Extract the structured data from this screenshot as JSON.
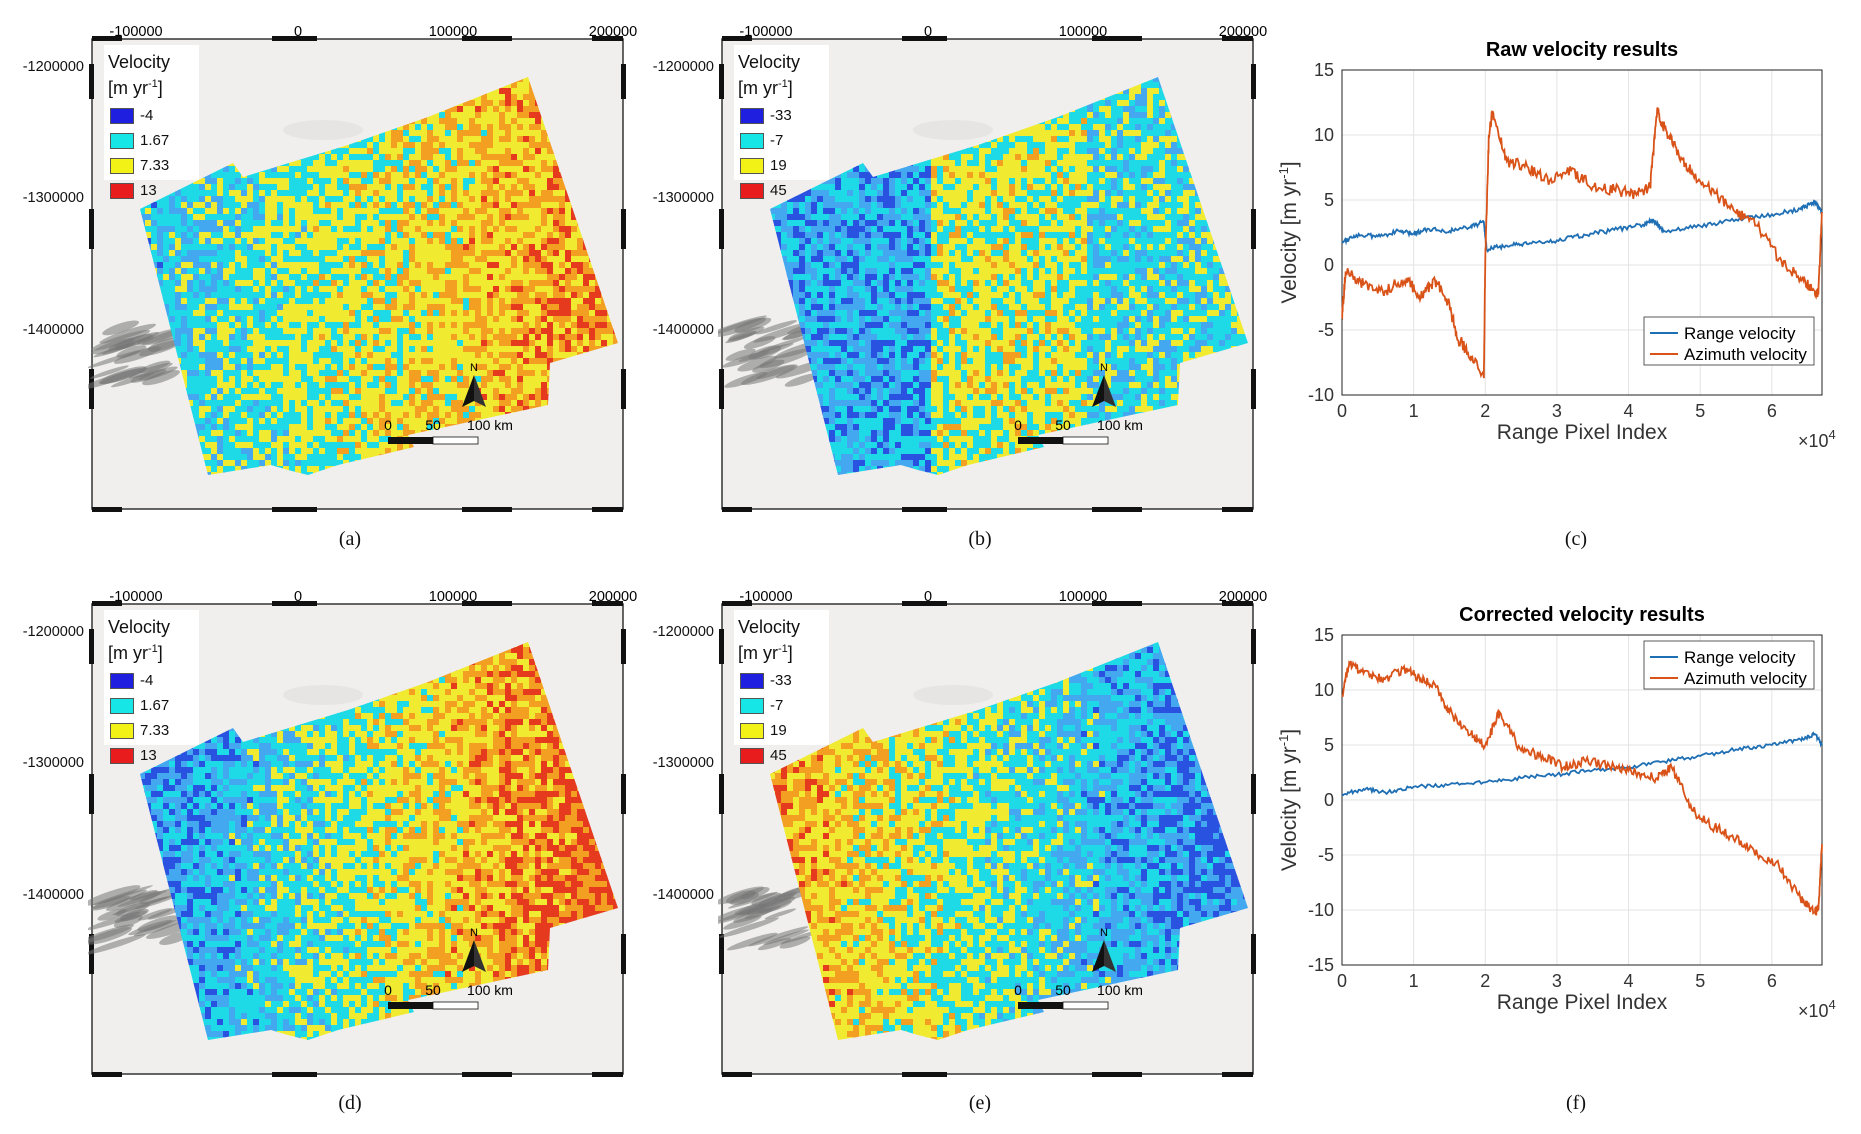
{
  "maps": [
    {
      "id": "a",
      "caption": "(a)",
      "legend": {
        "title_line1": "Velocity",
        "title_line2": "[m yr",
        "title_sup": "-1",
        "title_end": "]",
        "items": [
          {
            "label": "-4",
            "color": "#1f1fe0"
          },
          {
            "label": "1.67",
            "color": "#17e6e6"
          },
          {
            "label": "7.33",
            "color": "#f2f217"
          },
          {
            "label": "13",
            "color": "#e81c1c"
          }
        ]
      },
      "theme": "raw_vel1"
    },
    {
      "id": "b",
      "caption": "(b)",
      "legend": {
        "title_line1": "Velocity",
        "title_line2": "[m yr",
        "title_sup": "-1",
        "title_end": "]",
        "items": [
          {
            "label": "-33",
            "color": "#1f1fe0"
          },
          {
            "label": "-7",
            "color": "#17e6e6"
          },
          {
            "label": "19",
            "color": "#f2f217"
          },
          {
            "label": "45",
            "color": "#e81c1c"
          }
        ]
      },
      "theme": "raw_vel2"
    },
    {
      "id": "d",
      "caption": "(d)",
      "legend": {
        "title_line1": "Velocity",
        "title_line2": "[m yr",
        "title_sup": "-1",
        "title_end": "]",
        "items": [
          {
            "label": "-4",
            "color": "#1f1fe0"
          },
          {
            "label": "1.67",
            "color": "#17e6e6"
          },
          {
            "label": "7.33",
            "color": "#f2f217"
          },
          {
            "label": "13",
            "color": "#e81c1c"
          }
        ]
      },
      "theme": "cor_vel1"
    },
    {
      "id": "e",
      "caption": "(e)",
      "legend": {
        "title_line1": "Velocity",
        "title_line2": "[m yr",
        "title_sup": "-1",
        "title_end": "]",
        "items": [
          {
            "label": "-33",
            "color": "#1f1fe0"
          },
          {
            "label": "-7",
            "color": "#17e6e6"
          },
          {
            "label": "19",
            "color": "#f2f217"
          },
          {
            "label": "45",
            "color": "#e81c1c"
          }
        ]
      },
      "theme": "cor_vel2"
    }
  ],
  "map_axes": {
    "top_ticks": [
      "-100000",
      "0",
      "100000",
      "200000"
    ],
    "left_ticks": [
      "-1200000",
      "-1300000",
      "-1400000"
    ],
    "north_label": "N",
    "scale_labels": [
      "0",
      "50",
      "100 km"
    ]
  },
  "chart_data": [
    {
      "type": "line",
      "panel": "c",
      "caption": "(c)",
      "title": "Raw velocity results",
      "xlabel": "Range Pixel Index",
      "ylabel": "Velocity [m yr",
      "ylabel_sup": "-1",
      "ylabel_end": "]",
      "x_multiplier": "×10",
      "x_multiplier_exp": "4",
      "xlim": [
        0,
        6.7
      ],
      "ylim": [
        -10,
        15
      ],
      "xticks": [
        "0",
        "1",
        "2",
        "3",
        "4",
        "5",
        "6"
      ],
      "yticks": [
        "-10",
        "-5",
        "0",
        "5",
        "10",
        "15"
      ],
      "legend_position": "bottom-right",
      "series": [
        {
          "name": "Range velocity",
          "color": "#1f6fb4",
          "x": [
            0,
            0.2,
            0.5,
            0.8,
            1.0,
            1.2,
            1.5,
            1.8,
            1.98,
            2.02,
            2.3,
            2.6,
            3.0,
            3.4,
            3.8,
            4.2,
            4.35,
            4.5,
            5.0,
            5.5,
            6.0,
            6.4,
            6.6,
            6.7
          ],
          "y": [
            1.8,
            2.3,
            2.2,
            2.6,
            2.4,
            2.8,
            2.6,
            3.0,
            3.3,
            1.2,
            1.5,
            1.6,
            1.9,
            2.3,
            2.7,
            3.1,
            3.4,
            2.6,
            3.0,
            3.5,
            3.9,
            4.3,
            4.9,
            4.0
          ]
        },
        {
          "name": "Azimuth velocity",
          "color": "#d95319",
          "x": [
            0,
            0.05,
            0.3,
            0.6,
            0.9,
            1.1,
            1.3,
            1.5,
            1.6,
            1.8,
            1.98,
            2.0,
            2.05,
            2.1,
            2.3,
            2.6,
            2.9,
            3.2,
            3.5,
            3.8,
            4.1,
            4.3,
            4.4,
            4.5,
            4.7,
            4.9,
            5.2,
            5.5,
            5.8,
            6.1,
            6.4,
            6.6,
            6.65,
            6.7
          ],
          "y": [
            -4.0,
            -0.5,
            -1.5,
            -2.0,
            -1.0,
            -2.5,
            -1.2,
            -3.0,
            -5.5,
            -7.0,
            -8.7,
            0.5,
            10.0,
            11.8,
            8.0,
            7.5,
            6.5,
            7.3,
            6.0,
            5.8,
            5.5,
            6.0,
            12.0,
            10.5,
            8.5,
            7.0,
            5.5,
            4.0,
            3.0,
            0.5,
            -1.0,
            -2.0,
            -2.2,
            4.0
          ]
        }
      ]
    },
    {
      "type": "line",
      "panel": "f",
      "caption": "(f)",
      "title": "Corrected velocity results",
      "xlabel": "Range Pixel Index",
      "ylabel": "Velocity [m yr",
      "ylabel_sup": "-1",
      "ylabel_end": "]",
      "x_multiplier": "×10",
      "x_multiplier_exp": "4",
      "xlim": [
        0,
        6.7
      ],
      "ylim": [
        -15,
        15
      ],
      "xticks": [
        "0",
        "1",
        "2",
        "3",
        "4",
        "5",
        "6"
      ],
      "yticks": [
        "-15",
        "-10",
        "-5",
        "0",
        "5",
        "10",
        "15"
      ],
      "legend_position": "top-right",
      "series": [
        {
          "name": "Range velocity",
          "color": "#1f6fb4",
          "x": [
            0,
            0.3,
            0.6,
            1.0,
            1.5,
            2.0,
            2.5,
            3.0,
            3.5,
            4.0,
            4.5,
            5.0,
            5.5,
            6.0,
            6.4,
            6.6,
            6.7
          ],
          "y": [
            0.5,
            1.0,
            0.7,
            1.2,
            1.4,
            1.6,
            2.0,
            2.3,
            2.7,
            3.0,
            3.5,
            4.0,
            4.6,
            5.0,
            5.5,
            6.0,
            5.0
          ]
        },
        {
          "name": "Azimuth velocity",
          "color": "#d95319",
          "x": [
            0,
            0.1,
            0.3,
            0.6,
            0.9,
            1.1,
            1.3,
            1.5,
            1.8,
            2.0,
            2.2,
            2.5,
            2.8,
            3.1,
            3.4,
            3.8,
            4.1,
            4.4,
            4.6,
            4.9,
            5.2,
            5.5,
            5.8,
            6.1,
            6.4,
            6.6,
            6.65,
            6.7
          ],
          "y": [
            9.5,
            12.5,
            11.5,
            11.0,
            12.0,
            11.0,
            10.5,
            8.0,
            6.0,
            5.0,
            8.0,
            4.5,
            4.0,
            3.0,
            3.5,
            3.0,
            2.5,
            2.0,
            3.0,
            -1.0,
            -2.5,
            -3.5,
            -5.0,
            -6.0,
            -9.0,
            -10.2,
            -10.0,
            -4.0
          ]
        }
      ]
    }
  ]
}
